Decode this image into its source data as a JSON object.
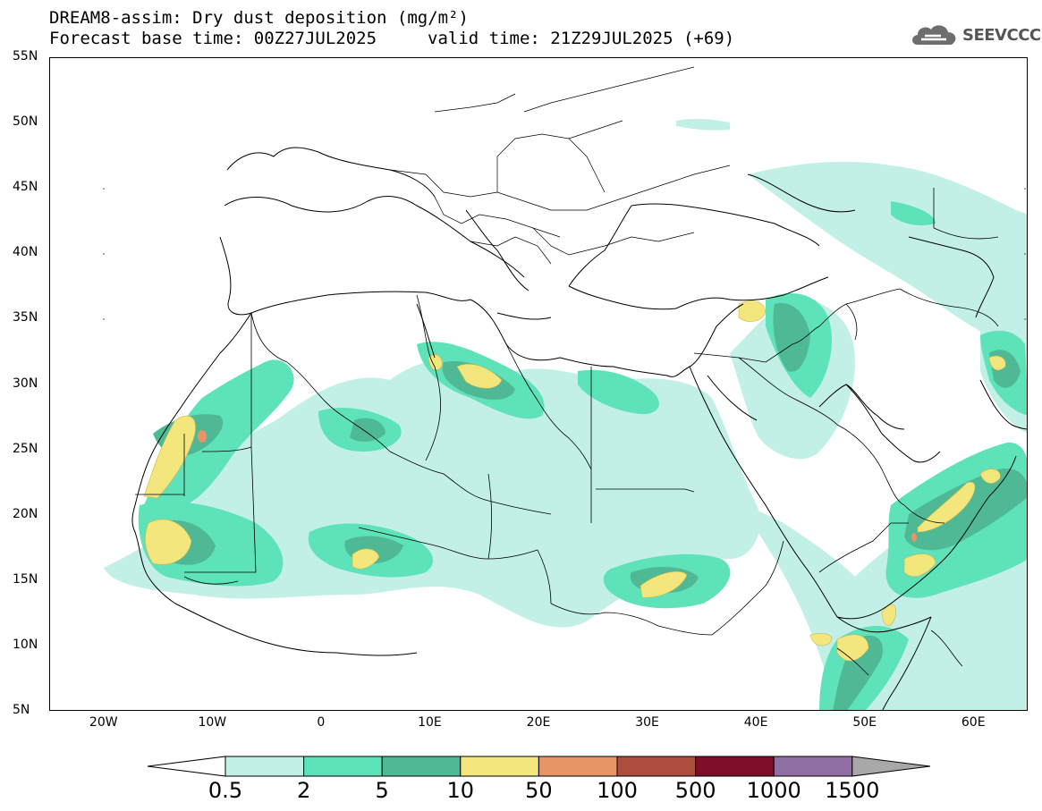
{
  "title": {
    "line1": "DREAM8-assim: Dry dust deposition (mg/m²)",
    "line2_base": "Forecast base time: 00Z27JUL2025",
    "line2_valid": "valid time: 21Z29JUL2025 (+69)"
  },
  "logo": {
    "text": "SEEVCCC",
    "icon": "cloud-icon"
  },
  "map": {
    "lon_range": [
      -25,
      65
    ],
    "lat_range": [
      5,
      55
    ],
    "lat_ticks": [
      "55N",
      "50N",
      "45N",
      "40N",
      "35N",
      "30N",
      "25N",
      "20N",
      "15N",
      "10N",
      "5N"
    ],
    "lon_ticks": [
      "20W",
      "10W",
      "0",
      "10E",
      "20E",
      "30E",
      "40E",
      "50E",
      "60E"
    ]
  },
  "colorbar": {
    "labels": [
      "0.5",
      "2",
      "5",
      "10",
      "50",
      "100",
      "500",
      "1000",
      "1500"
    ],
    "colors": [
      "#c2f0e6",
      "#5ee2b9",
      "#4fb996",
      "#f2e67d",
      "#e89467",
      "#ad4d3e",
      "#7d0f28",
      "#8f6fa3",
      "#a8a8a8"
    ],
    "under_color": "#ffffff"
  }
}
